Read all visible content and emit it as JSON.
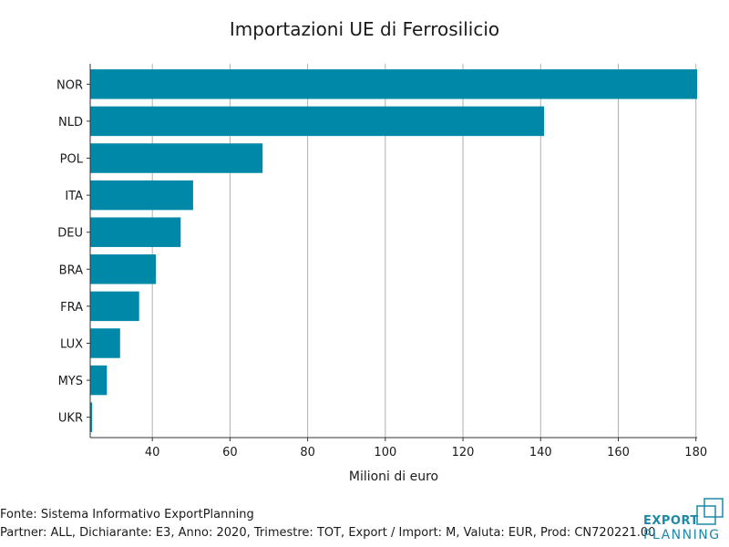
{
  "chart_data": {
    "type": "bar",
    "orientation": "horizontal",
    "title": "Importazioni UE di Ferrosilicio",
    "xlabel": "Milioni di euro",
    "ylabel": "",
    "categories": [
      "NOR",
      "NLD",
      "POL",
      "ITA",
      "DEU",
      "BRA",
      "FRA",
      "LUX",
      "MYS",
      "UKR"
    ],
    "values": [
      180.3,
      140.9,
      68.4,
      50.5,
      47.3,
      40.9,
      36.6,
      31.7,
      28.3,
      24.5
    ],
    "xlim": [
      24,
      180.3
    ],
    "xticks": [
      40,
      60,
      80,
      100,
      120,
      140,
      160,
      180
    ],
    "grid": "vertical",
    "bar_color": "#0088a8"
  },
  "footer": {
    "source": "Fonte: Sistema Informativo ExportPlanning",
    "params": "Partner: ALL, Dichiarante: E3, Anno: 2020, Trimestre: TOT, Export / Import: M, Valuta: EUR, Prod: CN720221.00"
  },
  "logo": {
    "line1": "EXPORT",
    "line2": "PLANNING",
    "color": "#1e88a8"
  }
}
